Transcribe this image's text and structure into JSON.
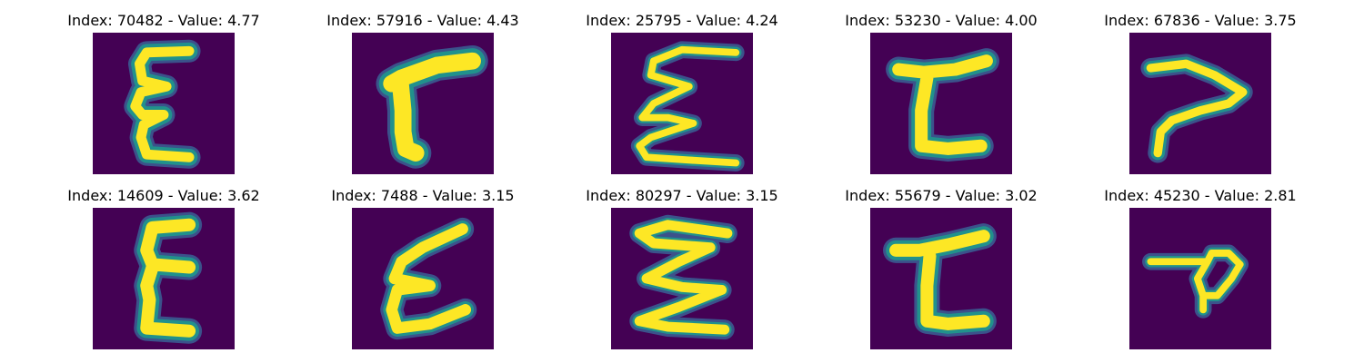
{
  "colors": {
    "background": "#440154",
    "glyph_core": "#fde725",
    "glyph_edge": "#21918c",
    "glyph_halo": "#3b528b"
  },
  "panels": [
    {
      "title": "Index: 70482 - Value: 4.77",
      "glyph": "g0"
    },
    {
      "title": "Index: 57916 - Value: 4.43",
      "glyph": "g1"
    },
    {
      "title": "Index: 25795 - Value: 4.24",
      "glyph": "g2"
    },
    {
      "title": "Index: 53230 - Value: 4.00",
      "glyph": "g3"
    },
    {
      "title": "Index: 67836 - Value: 3.75",
      "glyph": "g4"
    },
    {
      "title": "Index: 14609 - Value: 3.62",
      "glyph": "g5"
    },
    {
      "title": "Index: 7488 - Value: 3.15",
      "glyph": "g6"
    },
    {
      "title": "Index: 80297 - Value: 3.15",
      "glyph": "g7"
    },
    {
      "title": "Index: 55679 - Value: 3.02",
      "glyph": "g8"
    },
    {
      "title": "Index: 45230 - Value: 2.81",
      "glyph": "g9"
    }
  ]
}
